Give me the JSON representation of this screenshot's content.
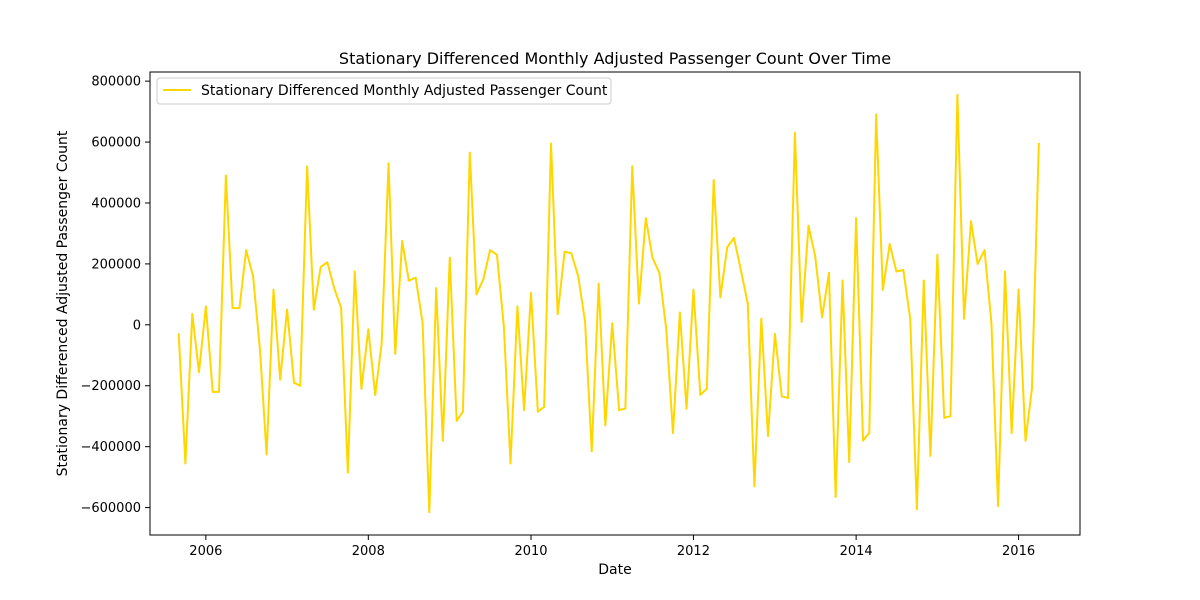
{
  "chart_data": {
    "type": "line",
    "title": "Stationary Differenced Monthly Adjusted Passenger Count Over Time",
    "xlabel": "Date",
    "ylabel": "Stationary Differenced Adjusted Passenger Count",
    "xlim": [
      "2005-04-25",
      "2016-10-03"
    ],
    "ylim": [
      -690000,
      830000
    ],
    "grid": false,
    "legend_position": "upper-left",
    "x_ticks": [
      {
        "label": "2006",
        "date": "2006-01-01"
      },
      {
        "label": "2008",
        "date": "2008-01-01"
      },
      {
        "label": "2010",
        "date": "2010-01-01"
      },
      {
        "label": "2012",
        "date": "2012-01-01"
      },
      {
        "label": "2014",
        "date": "2014-01-01"
      },
      {
        "label": "2016",
        "date": "2016-01-01"
      }
    ],
    "y_ticks": [
      {
        "label": "−600000",
        "value": -600000
      },
      {
        "label": "−400000",
        "value": -400000
      },
      {
        "label": "−200000",
        "value": -200000
      },
      {
        "label": "0",
        "value": 0
      },
      {
        "label": "200000",
        "value": 200000
      },
      {
        "label": "400000",
        "value": 400000
      },
      {
        "label": "600000",
        "value": 600000
      },
      {
        "label": "800000",
        "value": 800000
      }
    ],
    "series": [
      {
        "name": "Stationary Differenced Monthly Adjusted Passenger Count",
        "color": "#ffd700",
        "points": [
          [
            "2005-09-01",
            -30000
          ],
          [
            "2005-10-01",
            -455000
          ],
          [
            "2005-11-01",
            35000
          ],
          [
            "2005-12-01",
            -155000
          ],
          [
            "2006-01-01",
            60000
          ],
          [
            "2006-02-01",
            -220000
          ],
          [
            "2006-03-01",
            -220000
          ],
          [
            "2006-04-01",
            490000
          ],
          [
            "2006-05-01",
            55000
          ],
          [
            "2006-06-01",
            55000
          ],
          [
            "2006-07-01",
            245000
          ],
          [
            "2006-08-01",
            160000
          ],
          [
            "2006-09-01",
            -80000
          ],
          [
            "2006-10-01",
            -425000
          ],
          [
            "2006-11-01",
            115000
          ],
          [
            "2006-12-01",
            -180000
          ],
          [
            "2007-01-01",
            50000
          ],
          [
            "2007-02-01",
            -190000
          ],
          [
            "2007-03-01",
            -200000
          ],
          [
            "2007-04-01",
            520000
          ],
          [
            "2007-05-01",
            50000
          ],
          [
            "2007-06-01",
            190000
          ],
          [
            "2007-07-01",
            205000
          ],
          [
            "2007-08-01",
            120000
          ],
          [
            "2007-09-01",
            55000
          ],
          [
            "2007-10-01",
            -485000
          ],
          [
            "2007-11-01",
            175000
          ],
          [
            "2007-12-01",
            -210000
          ],
          [
            "2008-01-01",
            -15000
          ],
          [
            "2008-02-01",
            -230000
          ],
          [
            "2008-03-01",
            -60000
          ],
          [
            "2008-04-01",
            530000
          ],
          [
            "2008-05-01",
            -95000
          ],
          [
            "2008-06-01",
            275000
          ],
          [
            "2008-07-01",
            145000
          ],
          [
            "2008-08-01",
            155000
          ],
          [
            "2008-09-01",
            5000
          ],
          [
            "2008-10-01",
            -615000
          ],
          [
            "2008-11-01",
            120000
          ],
          [
            "2008-12-01",
            -380000
          ],
          [
            "2009-01-01",
            220000
          ],
          [
            "2009-02-01",
            -315000
          ],
          [
            "2009-03-01",
            -285000
          ],
          [
            "2009-04-01",
            565000
          ],
          [
            "2009-05-01",
            100000
          ],
          [
            "2009-06-01",
            150000
          ],
          [
            "2009-07-01",
            245000
          ],
          [
            "2009-08-01",
            230000
          ],
          [
            "2009-09-01",
            -5000
          ],
          [
            "2009-10-01",
            -455000
          ],
          [
            "2009-11-01",
            60000
          ],
          [
            "2009-12-01",
            -280000
          ],
          [
            "2010-01-01",
            105000
          ],
          [
            "2010-02-01",
            -285000
          ],
          [
            "2010-03-01",
            -270000
          ],
          [
            "2010-04-01",
            595000
          ],
          [
            "2010-05-01",
            35000
          ],
          [
            "2010-06-01",
            240000
          ],
          [
            "2010-07-01",
            235000
          ],
          [
            "2010-08-01",
            160000
          ],
          [
            "2010-09-01",
            10000
          ],
          [
            "2010-10-01",
            -415000
          ],
          [
            "2010-11-01",
            135000
          ],
          [
            "2010-12-01",
            -330000
          ],
          [
            "2011-01-01",
            5000
          ],
          [
            "2011-02-01",
            -280000
          ],
          [
            "2011-03-01",
            -275000
          ],
          [
            "2011-04-01",
            520000
          ],
          [
            "2011-05-01",
            70000
          ],
          [
            "2011-06-01",
            350000
          ],
          [
            "2011-07-01",
            220000
          ],
          [
            "2011-08-01",
            170000
          ],
          [
            "2011-09-01",
            -15000
          ],
          [
            "2011-10-01",
            -355000
          ],
          [
            "2011-11-01",
            40000
          ],
          [
            "2011-12-01",
            -275000
          ],
          [
            "2012-01-01",
            115000
          ],
          [
            "2012-02-01",
            -230000
          ],
          [
            "2012-03-01",
            -210000
          ],
          [
            "2012-04-01",
            475000
          ],
          [
            "2012-05-01",
            90000
          ],
          [
            "2012-06-01",
            255000
          ],
          [
            "2012-07-01",
            285000
          ],
          [
            "2012-08-01",
            180000
          ],
          [
            "2012-09-01",
            70000
          ],
          [
            "2012-10-01",
            -530000
          ],
          [
            "2012-11-01",
            20000
          ],
          [
            "2012-12-01",
            -365000
          ],
          [
            "2013-01-01",
            -30000
          ],
          [
            "2013-02-01",
            -235000
          ],
          [
            "2013-03-01",
            -240000
          ],
          [
            "2013-04-01",
            630000
          ],
          [
            "2013-05-01",
            10000
          ],
          [
            "2013-06-01",
            325000
          ],
          [
            "2013-07-01",
            225000
          ],
          [
            "2013-08-01",
            25000
          ],
          [
            "2013-09-01",
            170000
          ],
          [
            "2013-10-01",
            -565000
          ],
          [
            "2013-11-01",
            145000
          ],
          [
            "2013-12-01",
            -450000
          ],
          [
            "2014-01-01",
            350000
          ],
          [
            "2014-02-01",
            -380000
          ],
          [
            "2014-03-01",
            -355000
          ],
          [
            "2014-04-01",
            690000
          ],
          [
            "2014-05-01",
            115000
          ],
          [
            "2014-06-01",
            265000
          ],
          [
            "2014-07-01",
            175000
          ],
          [
            "2014-08-01",
            180000
          ],
          [
            "2014-09-01",
            20000
          ],
          [
            "2014-10-01",
            -605000
          ],
          [
            "2014-11-01",
            145000
          ],
          [
            "2014-12-01",
            -430000
          ],
          [
            "2015-01-01",
            230000
          ],
          [
            "2015-02-01",
            -305000
          ],
          [
            "2015-03-01",
            -300000
          ],
          [
            "2015-04-01",
            755000
          ],
          [
            "2015-05-01",
            20000
          ],
          [
            "2015-06-01",
            340000
          ],
          [
            "2015-07-01",
            200000
          ],
          [
            "2015-08-01",
            245000
          ],
          [
            "2015-09-01",
            5000
          ],
          [
            "2015-10-01",
            -595000
          ],
          [
            "2015-11-01",
            175000
          ],
          [
            "2015-12-01",
            -355000
          ],
          [
            "2016-01-01",
            115000
          ],
          [
            "2016-02-01",
            -380000
          ],
          [
            "2016-03-01",
            -210000
          ],
          [
            "2016-04-01",
            595000
          ]
        ]
      }
    ]
  }
}
